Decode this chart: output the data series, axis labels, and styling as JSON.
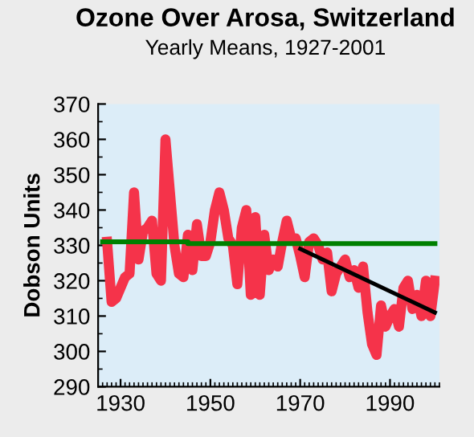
{
  "chart_data": {
    "type": "line",
    "title": "Ozone Over Arosa, Switzerland",
    "subtitle": "Yearly Means, 1927-2001",
    "ylabel": "Dobson Units",
    "xlim": [
      1925,
      2001
    ],
    "xticks": [
      1930,
      1950,
      1970,
      1990
    ],
    "ylim": [
      290,
      370
    ],
    "yticks": [
      290,
      300,
      310,
      320,
      330,
      340,
      350,
      360,
      370
    ],
    "grid": false,
    "legend": false,
    "series": [
      {
        "color": "#f5334a",
        "x": [
          1927,
          1928,
          1929,
          1930,
          1931,
          1932,
          1933,
          1934,
          1935,
          1936,
          1937,
          1938,
          1939,
          1940,
          1941,
          1942,
          1943,
          1944,
          1945,
          1946,
          1947,
          1948,
          1949,
          1950,
          1951,
          1952,
          1953,
          1954,
          1955,
          1956,
          1957,
          1958,
          1959,
          1960,
          1961,
          1962,
          1963,
          1964,
          1965,
          1966,
          1967,
          1968,
          1969,
          1970,
          1971,
          1972,
          1973,
          1974,
          1975,
          1976,
          1977,
          1978,
          1979,
          1980,
          1981,
          1982,
          1983,
          1984,
          1985,
          1986,
          1987,
          1988,
          1989,
          1990,
          1991,
          1992,
          1993,
          1994,
          1995,
          1996,
          1997,
          1998,
          1999,
          2000
        ],
        "values": [
          331,
          314,
          315,
          318,
          321,
          322,
          345,
          326,
          334,
          335,
          337,
          322,
          320,
          360,
          345,
          330,
          322,
          321,
          333,
          323,
          336,
          327,
          327,
          331,
          340,
          345,
          340,
          332,
          330,
          319,
          335,
          340,
          316,
          338,
          316,
          333,
          323,
          326,
          324,
          331,
          337,
          332,
          332,
          327,
          321,
          331,
          332,
          330,
          326,
          328,
          317,
          322,
          324,
          326,
          321,
          323,
          318,
          324,
          311,
          302,
          299,
          313,
          307,
          310,
          312,
          307,
          318,
          320,
          312,
          316,
          310,
          320,
          310,
          320
        ]
      },
      {
        "color": "#000000",
        "x": [
          1970,
          2000
        ],
        "values": [
          329,
          311
        ]
      },
      {
        "color": "#008000",
        "x": [
          1926,
          1945,
          1945,
          2000
        ],
        "values": [
          331,
          331,
          330.5,
          330.5
        ]
      }
    ]
  }
}
